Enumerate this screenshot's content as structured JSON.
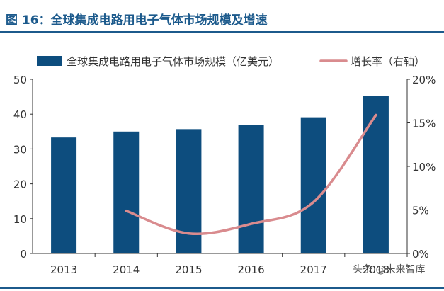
{
  "header": {
    "title": "图 16：全球集成电路用电子气体市场规模及增速"
  },
  "watermark": {
    "text": "头条 @未来智库"
  },
  "chart_data": {
    "type": "bar",
    "title": "全球集成电路用电子气体市场规模及增速",
    "categories": [
      "2013",
      "2014",
      "2015",
      "2016",
      "2017",
      "2018"
    ],
    "series": [
      {
        "name": "全球集成电路用电子气体市场规模（亿美元）",
        "type": "bar",
        "axis": "left",
        "color": "#0d4d7e",
        "values": [
          33.3,
          35.0,
          35.7,
          36.9,
          39.1,
          45.3
        ]
      },
      {
        "name": "增长率（右轴）",
        "type": "line",
        "axis": "right",
        "color": "#d98b8e",
        "values": [
          null,
          4.9,
          2.3,
          3.4,
          5.9,
          15.9
        ]
      }
    ],
    "y_left": {
      "ylim": [
        0,
        50
      ],
      "ticks": [
        "0",
        "10",
        "20",
        "30",
        "40",
        "50"
      ]
    },
    "y_right": {
      "ylim": [
        0,
        20
      ],
      "ticks": [
        "0%",
        "5%",
        "10%",
        "15%",
        "20%"
      ]
    },
    "legend": "top",
    "grid": false
  }
}
